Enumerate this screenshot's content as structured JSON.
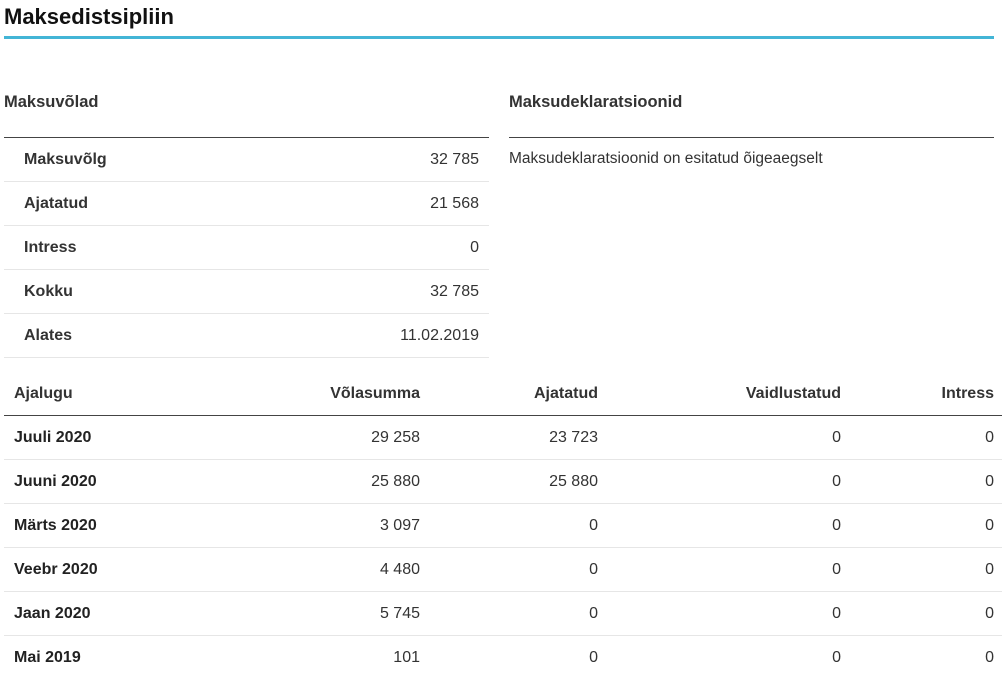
{
  "page": {
    "title": "Maksedistsipliin",
    "accent_color": "#43b5d6"
  },
  "debts": {
    "heading": "Maksuvõlad",
    "rows": [
      {
        "label": "Maksuvõlg",
        "value": "32 785"
      },
      {
        "label": "Ajatatud",
        "value": "21 568"
      },
      {
        "label": "Intress",
        "value": "0"
      },
      {
        "label": "Kokku",
        "value": "32 785"
      },
      {
        "label": "Alates",
        "value": "11.02.2019"
      }
    ]
  },
  "declarations": {
    "heading": "Maksudeklaratsioonid",
    "text": "Maksudeklaratsioonid on esitatud õigeaegselt"
  },
  "history": {
    "columns": [
      "Ajalugu",
      "Võlasumma",
      "Ajatatud",
      "Vaidlustatud",
      "Intress"
    ],
    "rows": [
      [
        "Juuli 2020",
        "29 258",
        "23 723",
        "0",
        "0"
      ],
      [
        "Juuni 2020",
        "25 880",
        "25 880",
        "0",
        "0"
      ],
      [
        "Märts 2020",
        "3 097",
        "0",
        "0",
        "0"
      ],
      [
        "Veebr 2020",
        "4 480",
        "0",
        "0",
        "0"
      ],
      [
        "Jaan 2020",
        "5 745",
        "0",
        "0",
        "0"
      ],
      [
        "Mai 2019",
        "101",
        "0",
        "0",
        "0"
      ]
    ]
  }
}
